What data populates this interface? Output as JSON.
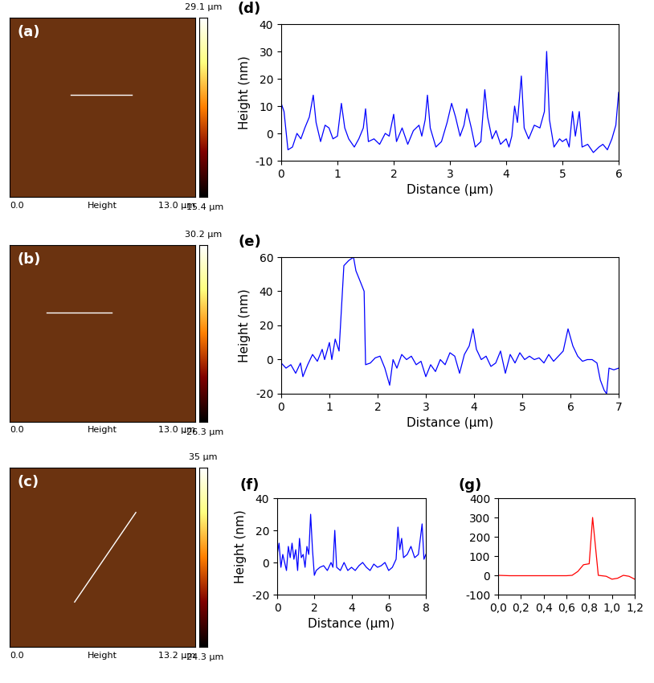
{
  "chart_data": [
    {
      "type": "image",
      "label": "(a)",
      "colorbar_range": [
        -15.4,
        29.1
      ],
      "colorbar_ticks": [
        {
          "value": -15.4,
          "label": "-15.4 µm"
        },
        {
          "value": 29.1,
          "label": "29.1 µm"
        }
      ],
      "scale_labels": [
        "0.0",
        "13.0 µm"
      ],
      "scale_title": "Height"
    },
    {
      "type": "image",
      "label": "(b)",
      "colorbar_range": [
        -26.3,
        30.2
      ],
      "colorbar_ticks": [
        {
          "value": -26.3,
          "label": "-26.3 µm"
        },
        {
          "value": 30.2,
          "label": "30.2 µm"
        }
      ],
      "scale_labels": [
        "0.0",
        "13.0 µm"
      ],
      "scale_title": "Height"
    },
    {
      "type": "image",
      "label": "(c)",
      "colorbar_range": [
        -24.3,
        35
      ],
      "colorbar_ticks": [
        {
          "value": -24.3,
          "label": "-24.3 µm"
        },
        {
          "value": 35,
          "label": "35 µm"
        }
      ],
      "scale_labels": [
        "0.0",
        "13.2 µm"
      ],
      "scale_title": "Height"
    },
    {
      "type": "line",
      "label": "(d)",
      "x_label": "Distance (µm)",
      "y_label": "Height (nm)",
      "color": "#0000ff",
      "x": [
        0,
        0.05,
        0.12,
        0.2,
        0.28,
        0.35,
        0.42,
        0.5,
        0.57,
        0.62,
        0.7,
        0.78,
        0.85,
        0.92,
        1.0,
        1.07,
        1.13,
        1.2,
        1.3,
        1.38,
        1.46,
        1.5,
        1.55,
        1.65,
        1.75,
        1.85,
        1.92,
        2.0,
        2.05,
        2.15,
        2.25,
        2.35,
        2.45,
        2.5,
        2.56,
        2.6,
        2.65,
        2.75,
        2.85,
        2.95,
        3.03,
        3.1,
        3.18,
        3.25,
        3.3,
        3.38,
        3.45,
        3.55,
        3.62,
        3.67,
        3.75,
        3.82,
        3.9,
        4.0,
        4.05,
        4.1,
        4.15,
        4.2,
        4.27,
        4.32,
        4.4,
        4.5,
        4.6,
        4.68,
        4.72,
        4.77,
        4.85,
        4.95,
        5.0,
        5.07,
        5.12,
        5.18,
        5.23,
        5.3,
        5.35,
        5.45,
        5.55,
        5.65,
        5.72,
        5.8,
        5.88,
        5.95,
        6.0
      ],
      "values": [
        11,
        8,
        -6,
        -5,
        0,
        -2,
        2,
        6,
        14,
        4,
        -3,
        3,
        2,
        -2,
        -1,
        11,
        2,
        -2,
        -5,
        -2,
        2,
        9,
        -3,
        -2,
        -4,
        0,
        -1,
        7,
        -3,
        2,
        -4,
        1,
        3,
        -1,
        5,
        14,
        2,
        -5,
        -3,
        4,
        11,
        6,
        -1,
        3,
        9,
        2,
        -5,
        -3,
        16,
        6,
        -2,
        1,
        -4,
        -2,
        -5,
        -1,
        10,
        4,
        21,
        2,
        -2,
        3,
        2,
        8,
        30,
        5,
        -5,
        -2,
        -3,
        -2,
        -5,
        8,
        -1,
        8,
        -5,
        -4,
        -7,
        -5,
        -4,
        -6,
        -2,
        3,
        15
      ],
      "xlim": [
        0,
        6
      ],
      "xticks": [
        0,
        1,
        2,
        3,
        4,
        5,
        6
      ],
      "ylim": [
        -10,
        40
      ],
      "yticks": [
        -10,
        0,
        10,
        20,
        30,
        40
      ]
    },
    {
      "type": "line",
      "label": "(e)",
      "x_label": "Distance (µm)",
      "y_label": "Height (nm)",
      "color": "#0000ff",
      "x": [
        0,
        0.1,
        0.2,
        0.3,
        0.4,
        0.45,
        0.55,
        0.65,
        0.75,
        0.85,
        0.9,
        1.0,
        1.05,
        1.12,
        1.2,
        1.3,
        1.4,
        1.5,
        1.55,
        1.65,
        1.72,
        1.75,
        1.85,
        1.95,
        2.05,
        2.15,
        2.25,
        2.32,
        2.4,
        2.5,
        2.6,
        2.7,
        2.8,
        2.9,
        3.0,
        3.1,
        3.2,
        3.3,
        3.4,
        3.5,
        3.6,
        3.7,
        3.8,
        3.9,
        3.98,
        4.05,
        4.15,
        4.25,
        4.35,
        4.45,
        4.55,
        4.65,
        4.75,
        4.85,
        4.95,
        5.05,
        5.15,
        5.25,
        5.35,
        5.45,
        5.55,
        5.65,
        5.75,
        5.85,
        5.95,
        6.05,
        6.15,
        6.25,
        6.35,
        6.45,
        6.55,
        6.62,
        6.7,
        6.75,
        6.8,
        6.9,
        7.0
      ],
      "values": [
        -2,
        -5,
        -3,
        -8,
        -2,
        -10,
        -3,
        3,
        -1,
        6,
        0,
        10,
        0,
        12,
        5,
        55,
        58,
        60,
        52,
        45,
        40,
        -3,
        -2,
        1,
        2,
        -5,
        -15,
        0,
        -5,
        3,
        0,
        2,
        -3,
        -1,
        -10,
        -3,
        -7,
        0,
        -3,
        4,
        2,
        -8,
        3,
        8,
        18,
        6,
        0,
        2,
        -4,
        -2,
        5,
        -8,
        3,
        -2,
        4,
        0,
        2,
        0,
        1,
        -2,
        3,
        -1,
        2,
        5,
        18,
        8,
        2,
        -1,
        0,
        0,
        -2,
        -12,
        -18,
        -20,
        -5,
        -6,
        -5
      ],
      "xlim": [
        0,
        7
      ],
      "xticks": [
        0,
        1,
        2,
        3,
        4,
        5,
        6,
        7
      ],
      "ylim": [
        -20,
        60
      ],
      "yticks": [
        -20,
        0,
        20,
        40,
        60
      ]
    },
    {
      "type": "line",
      "label": "(f)",
      "x_label": "Distance (µm)",
      "y_label": "Height (nm)",
      "color": "#0000ff",
      "x": [
        0,
        0.1,
        0.2,
        0.3,
        0.4,
        0.5,
        0.6,
        0.7,
        0.8,
        0.9,
        1.0,
        1.1,
        1.2,
        1.3,
        1.4,
        1.5,
        1.6,
        1.7,
        1.8,
        1.9,
        2.0,
        2.1,
        2.3,
        2.5,
        2.7,
        2.9,
        3.0,
        3.1,
        3.2,
        3.4,
        3.6,
        3.8,
        4.0,
        4.2,
        4.4,
        4.6,
        4.8,
        5.0,
        5.2,
        5.4,
        5.6,
        5.8,
        6.0,
        6.2,
        6.4,
        6.5,
        6.6,
        6.7,
        6.8,
        7.0,
        7.2,
        7.4,
        7.6,
        7.8,
        7.9,
        8.0
      ],
      "values": [
        5,
        12,
        -3,
        5,
        0,
        -5,
        10,
        3,
        12,
        2,
        8,
        -5,
        15,
        3,
        5,
        -3,
        10,
        5,
        30,
        8,
        -8,
        -5,
        -3,
        -2,
        -5,
        0,
        -3,
        20,
        -3,
        -5,
        0,
        -5,
        -3,
        -5,
        -2,
        0,
        -3,
        -5,
        -1,
        -3,
        -2,
        0,
        -5,
        -3,
        2,
        22,
        8,
        15,
        3,
        5,
        10,
        3,
        5,
        24,
        2,
        5
      ],
      "xlim": [
        0,
        8
      ],
      "xticks": [
        0,
        2,
        4,
        6,
        8
      ],
      "ylim": [
        -20,
        40
      ],
      "yticks": [
        -20,
        0,
        20,
        40
      ]
    },
    {
      "type": "line",
      "label": "(g)",
      "color": "#ff0000",
      "x": [
        0,
        0.1,
        0.2,
        0.3,
        0.4,
        0.5,
        0.6,
        0.65,
        0.7,
        0.75,
        0.8,
        0.83,
        0.88,
        0.95,
        1.0,
        1.05,
        1.1,
        1.15,
        1.2
      ],
      "values": [
        0,
        -2,
        -2,
        -2,
        -2,
        -2,
        -2,
        0,
        20,
        55,
        60,
        300,
        0,
        -5,
        -20,
        -15,
        0,
        -5,
        -20
      ],
      "xlim": [
        0,
        1.2
      ],
      "xticks": [
        {
          "value": 0,
          "label": "0,0"
        },
        {
          "value": 0.2,
          "label": "0,2"
        },
        {
          "value": 0.4,
          "label": "0,4"
        },
        {
          "value": 0.6,
          "label": "0,6"
        },
        {
          "value": 0.8,
          "label": "0,8"
        },
        {
          "value": 1.0,
          "label": "1,0"
        },
        {
          "value": 1.2,
          "label": "1,2"
        }
      ],
      "ylim": [
        -100,
        400
      ],
      "yticks": [
        -100,
        0,
        100,
        200,
        300,
        400
      ]
    }
  ]
}
